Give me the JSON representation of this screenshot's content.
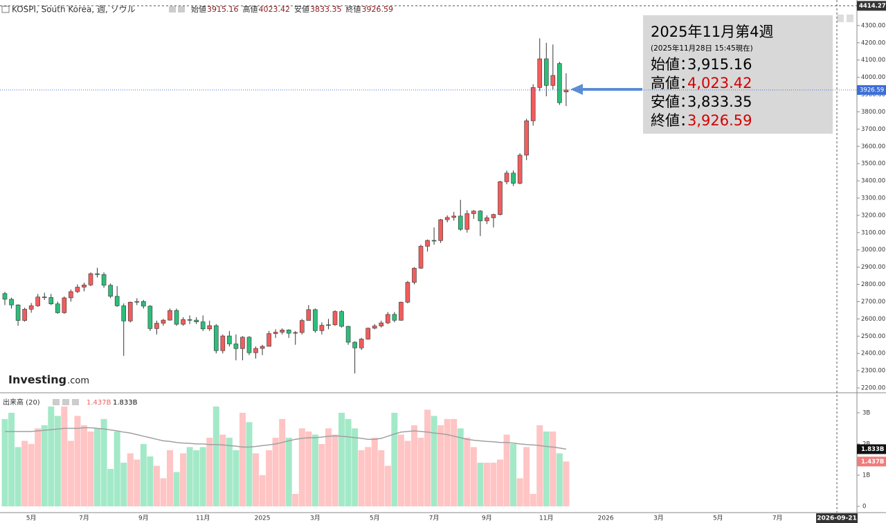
{
  "chart_data": {
    "type": "candlestick",
    "title": "KOSPI, South Korea, 週, ソウル",
    "ohlc_legend": [
      {
        "label": "始値",
        "value": 3915.16
      },
      {
        "label": "高値",
        "value": 4023.42
      },
      {
        "label": "安値",
        "value": 3833.35
      },
      {
        "label": "終値",
        "value": 3926.59
      }
    ],
    "categories": [
      null,
      null,
      null,
      null,
      "5月",
      null,
      null,
      null,
      null,
      null,
      null,
      null,
      "7月",
      null,
      null,
      null,
      null,
      null,
      null,
      null,
      null,
      "9月",
      null,
      null,
      null,
      null,
      null,
      null,
      null,
      null,
      "11月",
      null,
      null,
      null,
      null,
      null,
      null,
      null,
      null,
      "2025",
      null,
      null,
      null,
      null,
      null,
      null,
      null,
      "3月",
      null,
      null,
      null,
      null,
      null,
      null,
      null,
      null,
      "5月",
      null,
      null,
      null,
      null,
      null,
      null,
      null,
      null,
      "7月",
      null,
      null,
      null,
      null,
      null,
      null,
      null,
      "9月",
      null,
      null,
      null,
      null,
      null,
      null,
      null,
      null,
      "11月",
      null,
      null,
      null,
      null,
      null,
      null,
      null,
      null,
      "2026",
      null,
      null,
      null,
      null,
      null,
      null,
      null,
      "3月",
      null,
      null,
      null,
      null,
      null,
      null,
      null,
      null,
      "5月",
      null,
      null,
      null,
      null,
      null,
      null,
      null,
      null,
      "7月",
      null,
      null,
      null,
      null,
      null,
      null,
      null,
      null,
      null
    ],
    "open": [
      2747,
      2714,
      2681,
      2591,
      2656,
      2676,
      2727,
      2724,
      2687,
      2636,
      2722,
      2758,
      2784,
      2797,
      2862,
      2857,
      2795,
      2731,
      2676,
      2588,
      2697,
      2701,
      2674,
      2544,
      2575,
      2593,
      2649,
      2569,
      2596,
      2593,
      2583,
      2542,
      2561,
      2416,
      2501,
      2455,
      2428,
      2494,
      2404,
      2429,
      2441,
      2515,
      2523,
      2536,
      2517,
      2521,
      2591,
      2654,
      2532,
      2563,
      2566,
      2643,
      2557,
      2465,
      2432,
      2483,
      2546,
      2559,
      2577,
      2626,
      2592,
      2697,
      2812,
      2894,
      3021,
      3055,
      3054,
      3175,
      3188,
      3196,
      3119,
      3210,
      3225,
      3168,
      3186,
      3205,
      3395,
      3445,
      3386,
      3549,
      3748,
      3941,
      4107,
      3953,
      4080,
      3915.16,
      null,
      null,
      null,
      null,
      null,
      null,
      null,
      null,
      null,
      null,
      null,
      null,
      null,
      null,
      null,
      null,
      null,
      null,
      null,
      null,
      null,
      null,
      null,
      null,
      null,
      null,
      null,
      null,
      null,
      null,
      null,
      null,
      null,
      null,
      null,
      null,
      null,
      null,
      null,
      null,
      null
    ],
    "high": [
      2757,
      2723,
      2685,
      2665,
      2692,
      2745,
      2752,
      2745,
      2700,
      2730,
      2770,
      2800,
      2810,
      2870,
      2896,
      2870,
      2805,
      2790,
      2690,
      2700,
      2720,
      2710,
      2680,
      2590,
      2600,
      2660,
      2660,
      2610,
      2620,
      2610,
      2620,
      2590,
      2570,
      2510,
      2530,
      2510,
      2500,
      2500,
      2440,
      2450,
      2530,
      2540,
      2545,
      2540,
      2530,
      2600,
      2680,
      2660,
      2580,
      2600,
      2650,
      2650,
      2560,
      2470,
      2490,
      2550,
      2570,
      2590,
      2640,
      2640,
      2700,
      2820,
      2900,
      3030,
      3060,
      3130,
      3180,
      3200,
      3220,
      3290,
      3230,
      3230,
      3230,
      3200,
      3210,
      3400,
      3460,
      3460,
      3560,
      3760,
      3960,
      4226,
      4200,
      4190,
      4090,
      4023.42,
      null,
      null,
      null,
      null,
      null,
      null,
      null,
      null,
      null,
      null,
      null,
      null,
      null,
      null,
      null,
      null,
      null,
      null,
      null,
      null,
      null,
      null,
      null,
      null,
      null,
      null,
      null,
      null,
      null,
      null,
      null,
      null,
      null,
      null,
      null,
      null,
      null,
      null,
      null,
      null,
      null
    ],
    "low": [
      2680,
      2660,
      2560,
      2584,
      2636,
      2670,
      2710,
      2680,
      2630,
      2630,
      2700,
      2750,
      2760,
      2790,
      2840,
      2780,
      2720,
      2670,
      2386,
      2580,
      2680,
      2660,
      2530,
      2510,
      2560,
      2590,
      2560,
      2560,
      2570,
      2570,
      2530,
      2530,
      2400,
      2400,
      2440,
      2360,
      2360,
      2390,
      2370,
      2390,
      2440,
      2490,
      2510,
      2490,
      2450,
      2510,
      2590,
      2520,
      2510,
      2540,
      2560,
      2550,
      2450,
      2284,
      2420,
      2480,
      2540,
      2550,
      2570,
      2580,
      2590,
      2690,
      2800,
      2890,
      2990,
      3030,
      3040,
      3160,
      3170,
      3110,
      3100,
      3180,
      3080,
      3150,
      3130,
      3200,
      3380,
      3370,
      3380,
      3520,
      3720,
      3920,
      3890,
      3930,
      3840,
      3833.35,
      null,
      null,
      null,
      null,
      null,
      null,
      null,
      null,
      null,
      null,
      null,
      null,
      null,
      null,
      null,
      null,
      null,
      null,
      null,
      null,
      null,
      null,
      null,
      null,
      null,
      null,
      null,
      null,
      null,
      null,
      null,
      null,
      null,
      null,
      null,
      null,
      null,
      null,
      null,
      null,
      null
    ],
    "close": [
      2714,
      2681,
      2591,
      2656,
      2676,
      2727,
      2724,
      2687,
      2636,
      2722,
      2758,
      2784,
      2797,
      2862,
      2857,
      2795,
      2731,
      2676,
      2588,
      2697,
      2701,
      2674,
      2544,
      2575,
      2593,
      2649,
      2569,
      2596,
      2593,
      2583,
      2542,
      2561,
      2416,
      2501,
      2455,
      2428,
      2494,
      2404,
      2429,
      2441,
      2515,
      2523,
      2536,
      2517,
      2521,
      2591,
      2654,
      2532,
      2563,
      2566,
      2643,
      2557,
      2465,
      2432,
      2483,
      2546,
      2559,
      2577,
      2626,
      2592,
      2697,
      2812,
      2894,
      3021,
      3055,
      3054,
      3175,
      3188,
      3196,
      3119,
      3210,
      3225,
      3168,
      3186,
      3205,
      3395,
      3445,
      3386,
      3549,
      3748,
      3941,
      4107,
      3953,
      4011,
      3853,
      3926.59,
      null,
      null,
      null,
      null,
      null,
      null,
      null,
      null,
      null,
      null,
      null,
      null,
      null,
      null,
      null,
      null,
      null,
      null,
      null,
      null,
      null,
      null,
      null,
      null,
      null,
      null,
      null,
      null,
      null,
      null,
      null,
      null,
      null,
      null,
      null,
      null,
      null,
      null,
      null,
      null,
      null
    ],
    "up_color": "#f25c5c",
    "down_color": "#2ebd7a",
    "ylim": [
      2180,
      4440
    ],
    "yticks": [
      {
        "value": 2200,
        "label": "2200.00"
      },
      {
        "value": 2300,
        "label": "2300.00"
      },
      {
        "value": 2400,
        "label": "2400.00"
      },
      {
        "value": 2500,
        "label": "2500.00"
      },
      {
        "value": 2600,
        "label": "2600.00"
      },
      {
        "value": 2700,
        "label": "2700.00"
      },
      {
        "value": 2800,
        "label": "2800.00"
      },
      {
        "value": 2900,
        "label": "2900.00"
      },
      {
        "value": 3000,
        "label": "3000.00"
      },
      {
        "value": 3100,
        "label": "3100.00"
      },
      {
        "value": 3200,
        "label": "3200.00"
      },
      {
        "value": 3300,
        "label": "3300.00"
      },
      {
        "value": 3400,
        "label": "3400.00"
      },
      {
        "value": 3500,
        "label": "3500.00"
      },
      {
        "value": 3600,
        "label": "3600.00"
      },
      {
        "value": 3700,
        "label": "3700.00"
      },
      {
        "value": 3800,
        "label": "3800.00"
      },
      {
        "value": 3900,
        "label": "3900.00"
      },
      {
        "value": 4000,
        "label": "4000.00"
      },
      {
        "value": 4100,
        "label": "4100.00"
      },
      {
        "value": 4200,
        "label": "4200.00"
      },
      {
        "value": 4300,
        "label": "4300.00"
      }
    ],
    "grid": false,
    "last_price": {
      "value": 3926.59,
      "label": "3926.59"
    },
    "crosshair": {
      "x_label": "2026-09-21",
      "price": {
        "value": 4414.27,
        "label": "4414.27"
      }
    },
    "watermark": {
      "brand": "Investing",
      "suffix": ".com"
    },
    "annotation": {
      "title": "2025年11月第4週",
      "subtitle": "(2025年11月28日 15:45現在)",
      "rows": [
        {
          "label": "始値：",
          "value": 3915.16,
          "value_label": "3,915.16",
          "color": "#000000"
        },
        {
          "label": "高値：",
          "value": 4023.42,
          "value_label": "4,023.42",
          "color": "#d40000"
        },
        {
          "label": "安値：",
          "value": 3833.35,
          "value_label": "3,833.35",
          "color": "#000000"
        },
        {
          "label": "終値：",
          "value": 3926.59,
          "value_label": "3,926.59",
          "color": "#d40000"
        }
      ]
    },
    "volume": {
      "title": "出来高 (20)",
      "values": [
        2.8,
        3.0,
        1.9,
        2.1,
        2.0,
        2.5,
        2.6,
        3.2,
        2.9,
        3.2,
        2.1,
        2.9,
        2.6,
        2.4,
        2.5,
        2.8,
        1.2,
        2.4,
        1.4,
        1.7,
        1.5,
        2.0,
        1.6,
        1.3,
        0.9,
        1.8,
        1.1,
        1.7,
        1.9,
        1.8,
        1.9,
        2.2,
        3.2,
        2.3,
        2.2,
        1.8,
        3.0,
        2.7,
        1.7,
        1.0,
        1.8,
        2.2,
        2.8,
        2.2,
        0.4,
        2.5,
        2.4,
        2.3,
        2.0,
        2.5,
        2.3,
        3.0,
        2.8,
        2.5,
        1.8,
        1.9,
        2.2,
        1.8,
        1.3,
        3.0,
        2.3,
        2.1,
        2.6,
        2.2,
        3.1,
        2.9,
        2.6,
        2.8,
        2.8,
        2.5,
        2.2,
        1.9,
        1.4,
        1.4,
        1.4,
        1.5,
        2.3,
        2.0,
        0.9,
        1.9,
        0.4,
        2.6,
        2.4,
        2.4,
        1.7,
        1.437,
        null,
        null,
        null,
        null,
        null,
        null,
        null,
        null,
        null,
        null,
        null,
        null,
        null,
        null,
        null,
        null,
        null,
        null,
        null,
        null,
        null,
        null,
        null,
        null,
        null,
        null,
        null,
        null,
        null,
        null,
        null,
        null,
        null,
        null,
        null,
        null,
        null,
        null,
        null,
        null,
        null
      ],
      "ma": [
        2.4,
        2.4,
        2.4,
        2.4,
        2.4,
        2.42,
        2.44,
        2.46,
        2.48,
        2.5,
        2.5,
        2.5,
        2.52,
        2.52,
        2.5,
        2.48,
        2.45,
        2.42,
        2.38,
        2.35,
        2.3,
        2.25,
        2.2,
        2.15,
        2.1,
        2.08,
        2.05,
        2.03,
        2.02,
        2.0,
        2.0,
        1.98,
        1.98,
        1.97,
        1.95,
        1.93,
        1.9,
        1.9,
        1.92,
        1.95,
        1.97,
        2.0,
        2.05,
        2.1,
        2.15,
        2.18,
        2.2,
        2.2,
        2.22,
        2.25,
        2.26,
        2.25,
        2.23,
        2.2,
        2.18,
        2.15,
        2.15,
        2.18,
        2.25,
        2.32,
        2.38,
        2.4,
        2.42,
        2.4,
        2.38,
        2.35,
        2.33,
        2.3,
        2.25,
        2.2,
        2.15,
        2.12,
        2.1,
        2.08,
        2.07,
        2.05,
        2.05,
        2.03,
        2.0,
        1.98,
        1.97,
        1.95,
        1.92,
        1.9,
        1.87,
        1.833,
        null,
        null,
        null,
        null,
        null,
        null,
        null,
        null,
        null,
        null,
        null,
        null,
        null,
        null,
        null,
        null,
        null,
        null,
        null,
        null,
        null,
        null,
        null,
        null,
        null,
        null,
        null,
        null,
        null,
        null,
        null,
        null,
        null,
        null,
        null,
        null,
        null,
        null,
        null,
        null,
        null
      ],
      "up_color": "#ffc4c4",
      "down_color": "#a3e9c8",
      "ma_color": "#a0a0a0",
      "last": {
        "value": 1.437,
        "label": "1.437B"
      },
      "ma_last": {
        "value": 1.833,
        "label": "1.833B"
      },
      "ylim": [
        -0.2,
        3.53
      ],
      "yticks": [
        0,
        {
          "value": 1,
          "label": "1B"
        },
        {
          "value": 2,
          "label": "2B"
        },
        {
          "value": 3,
          "label": "3B"
        }
      ]
    }
  }
}
